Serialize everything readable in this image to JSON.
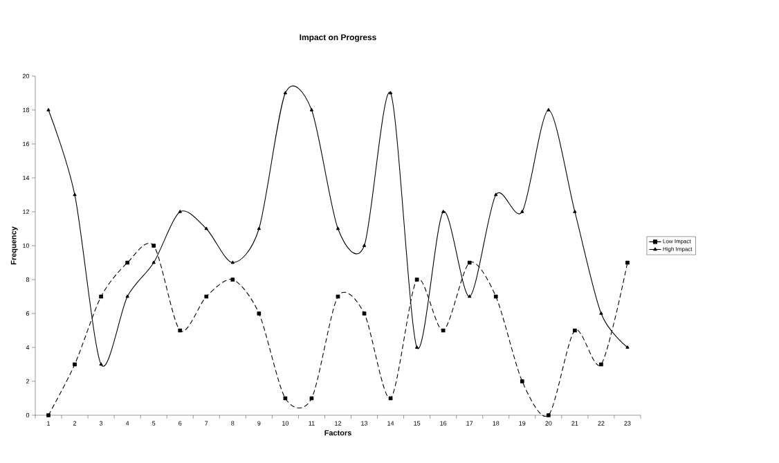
{
  "chart_data": {
    "type": "line",
    "title": "Impact on Progress",
    "xlabel": "Factors",
    "ylabel": "Frequency",
    "categories": [
      "1",
      "2",
      "3",
      "4",
      "5",
      "6",
      "7",
      "8",
      "9",
      "10",
      "11",
      "12",
      "13",
      "14",
      "15",
      "16",
      "17",
      "18",
      "19",
      "20",
      "21",
      "22",
      "23"
    ],
    "series": [
      {
        "name": "Low Impact",
        "color": "#000000",
        "marker": "square",
        "line_style": "dashed",
        "values": [
          0,
          3,
          7,
          9,
          10,
          5,
          7,
          8,
          6,
          1,
          1,
          7,
          6,
          1,
          8,
          5,
          9,
          7,
          2,
          0,
          5,
          3,
          9
        ]
      },
      {
        "name": "High Impact",
        "color": "#000000",
        "marker": "triangle",
        "line_style": "solid",
        "values": [
          18,
          13,
          3,
          7,
          9,
          12,
          11,
          9,
          11,
          19,
          18,
          11,
          10,
          19,
          4,
          12,
          7,
          13,
          12,
          18,
          12,
          6,
          4
        ]
      }
    ],
    "ylim": [
      0,
      20
    ],
    "yticks": [
      0,
      2,
      4,
      6,
      8,
      10,
      12,
      14,
      16,
      18,
      20
    ],
    "grid": false,
    "legend": "right"
  }
}
